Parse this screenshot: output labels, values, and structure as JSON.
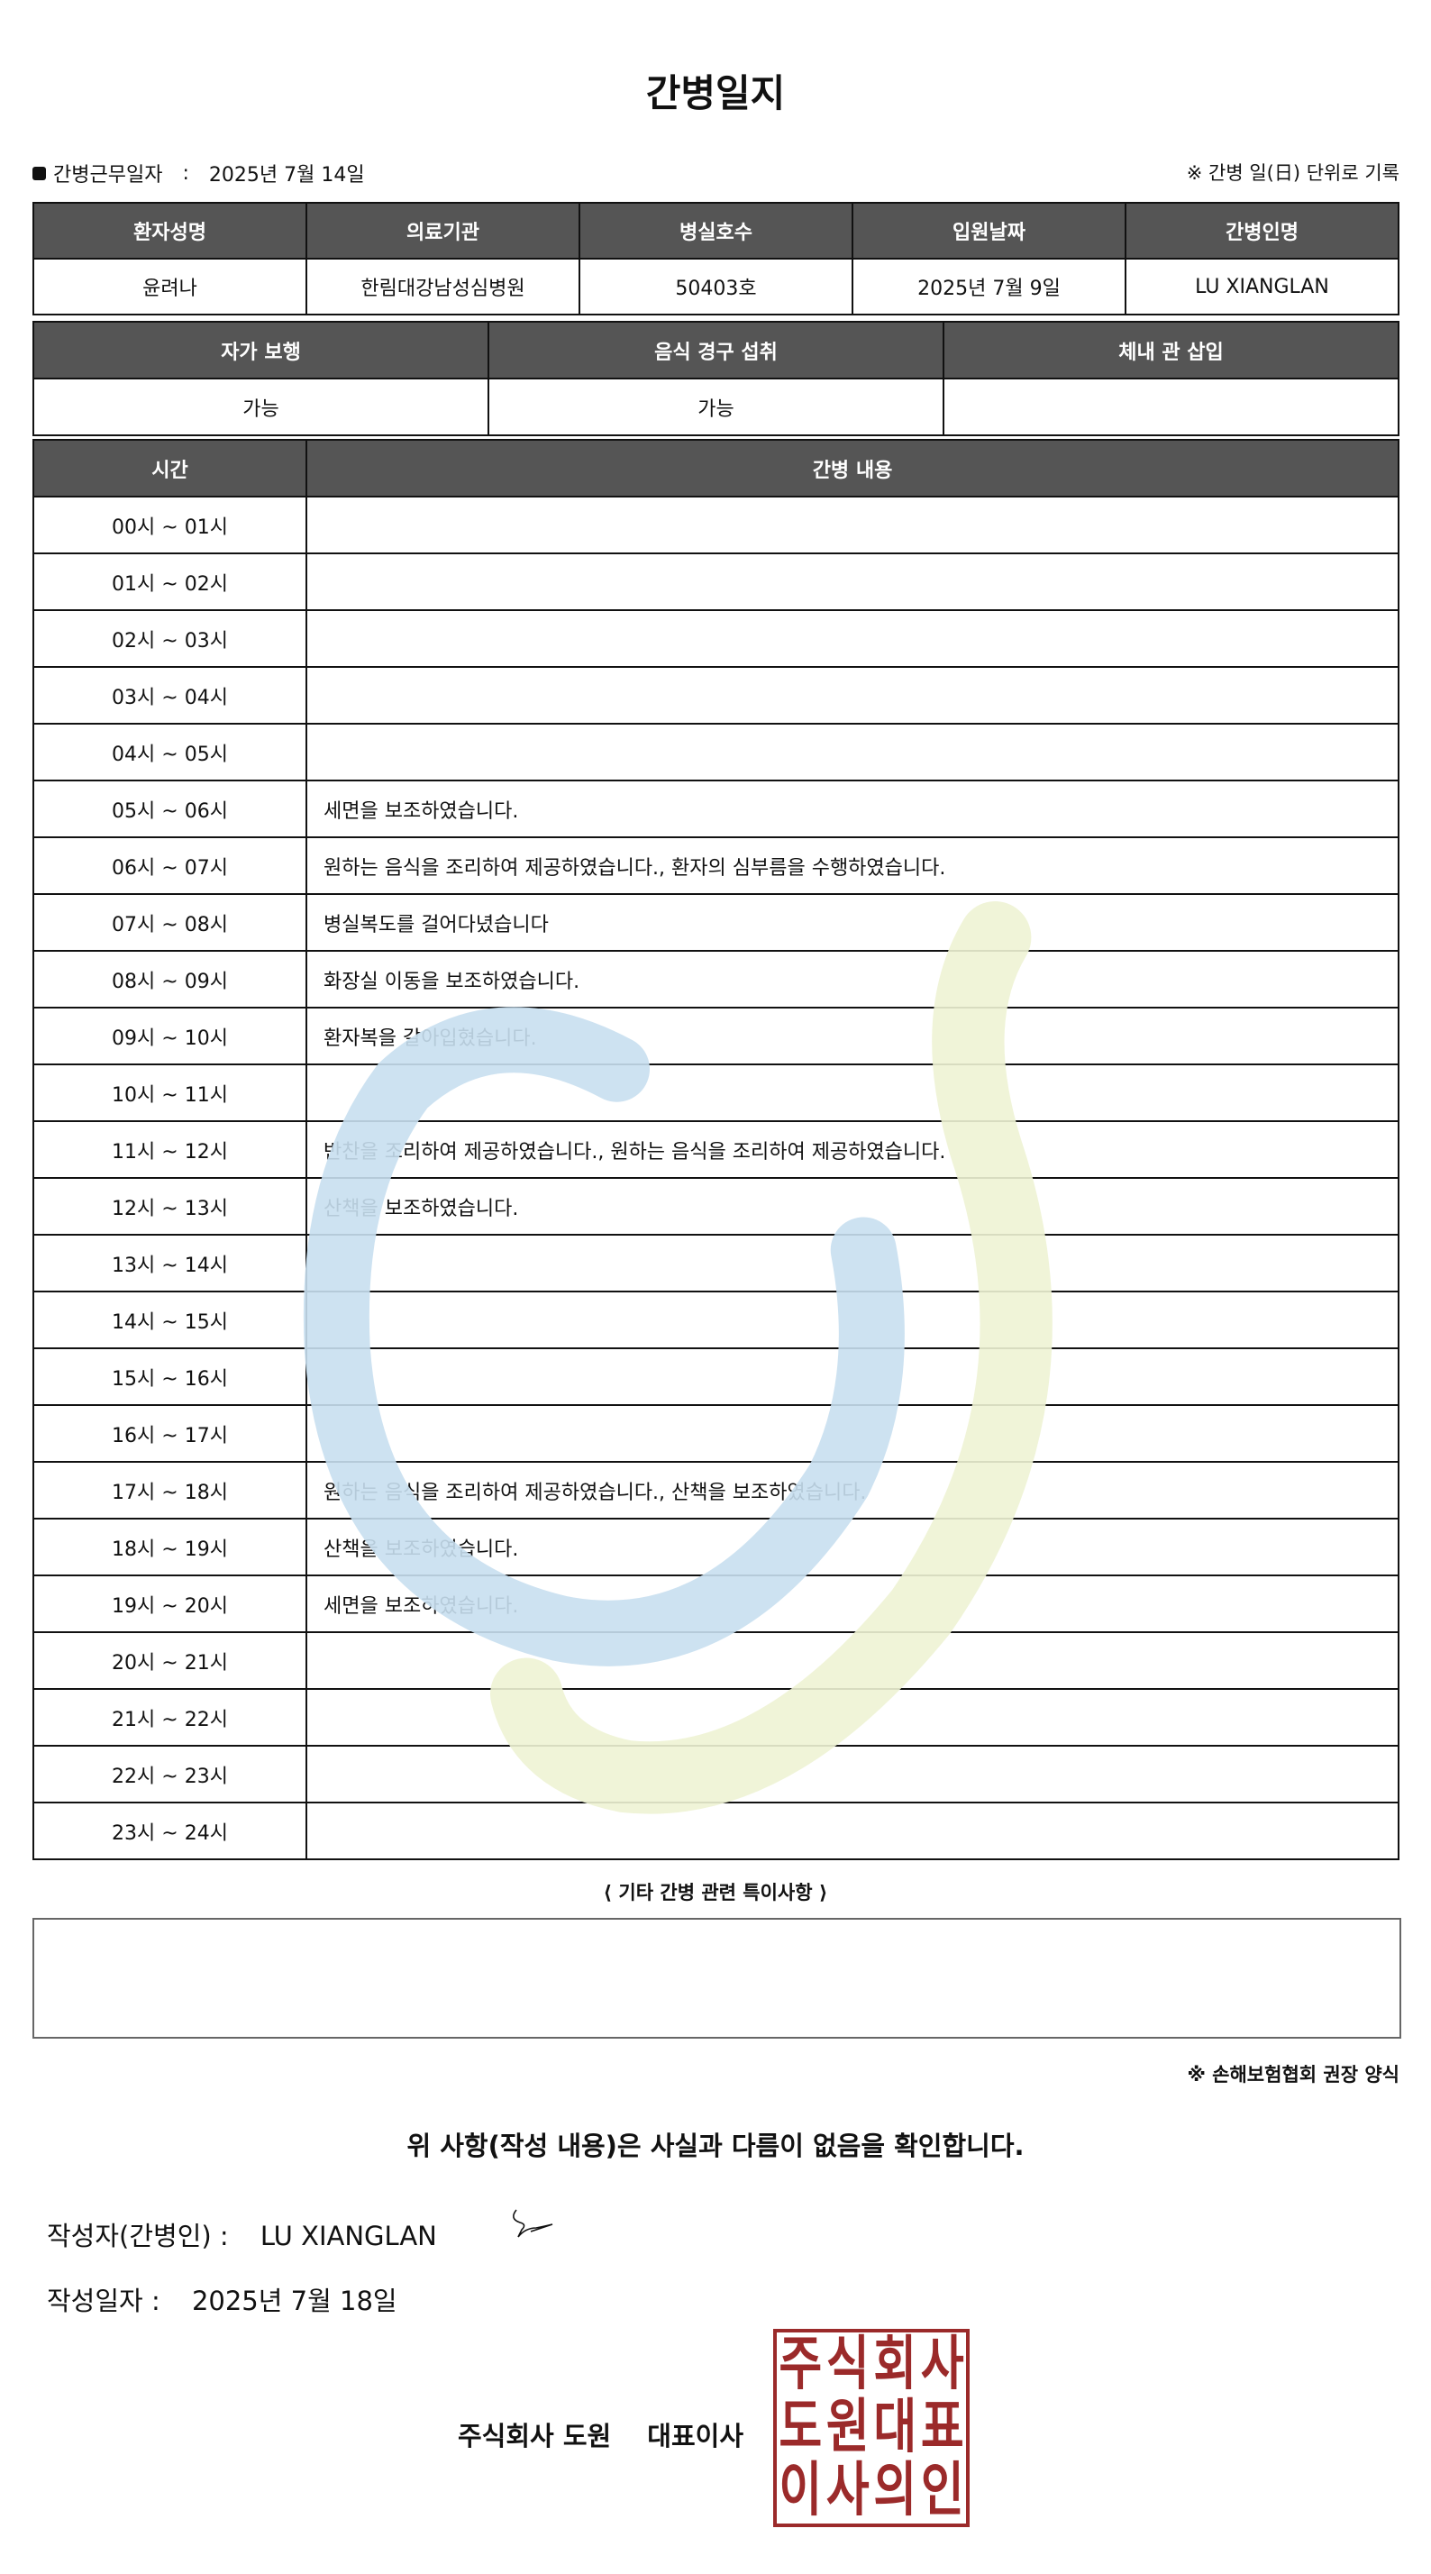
{
  "title": "간병일지",
  "work_date_label": "간병근무일자",
  "work_date_sep": ":",
  "work_date": "2025년 7월 14일",
  "unit_note": "※ 간병 일(日) 단위로 기록",
  "patient_table": {
    "headers": [
      "환자성명",
      "의료기관",
      "병실호수",
      "입원날짜",
      "간병인명"
    ],
    "values": [
      "윤려나",
      "한림대강남성심병원",
      "50403호",
      "2025년 7월 9일",
      "LU XIANGLAN"
    ]
  },
  "status_table": {
    "headers": [
      "자가 보행",
      "음식 경구 섭취",
      "체내 관 삽입"
    ],
    "values": [
      "가능",
      "가능",
      ""
    ]
  },
  "log_table": {
    "headers": [
      "시간",
      "간병 내용"
    ],
    "rows": [
      {
        "time": "00시 ~ 01시",
        "content": ""
      },
      {
        "time": "01시 ~ 02시",
        "content": ""
      },
      {
        "time": "02시 ~ 03시",
        "content": ""
      },
      {
        "time": "03시 ~ 04시",
        "content": ""
      },
      {
        "time": "04시 ~ 05시",
        "content": ""
      },
      {
        "time": "05시 ~ 06시",
        "content": "세면을 보조하였습니다."
      },
      {
        "time": "06시 ~ 07시",
        "content": "원하는 음식을 조리하여 제공하였습니다., 환자의 심부름을 수행하였습니다."
      },
      {
        "time": "07시 ~ 08시",
        "content": "병실복도를 걸어다녔습니다"
      },
      {
        "time": "08시 ~ 09시",
        "content": "화장실 이동을 보조하였습니다."
      },
      {
        "time": "09시 ~ 10시",
        "content": "환자복을 갈아입혔습니다."
      },
      {
        "time": "10시 ~ 11시",
        "content": ""
      },
      {
        "time": "11시 ~ 12시",
        "content": "반찬을 조리하여 제공하였습니다., 원하는 음식을 조리하여 제공하였습니다."
      },
      {
        "time": "12시 ~ 13시",
        "content": "산책을 보조하였습니다."
      },
      {
        "time": "13시 ~ 14시",
        "content": ""
      },
      {
        "time": "14시 ~ 15시",
        "content": ""
      },
      {
        "time": "15시 ~ 16시",
        "content": ""
      },
      {
        "time": "16시 ~ 17시",
        "content": ""
      },
      {
        "time": "17시 ~ 18시",
        "content": "원하는 음식을 조리하여 제공하였습니다., 산책을 보조하였습니다."
      },
      {
        "time": "18시 ~ 19시",
        "content": "산책을 보조하였습니다."
      },
      {
        "time": "19시 ~ 20시",
        "content": "세면을 보조하였습니다."
      },
      {
        "time": "20시 ~ 21시",
        "content": ""
      },
      {
        "time": "21시 ~ 22시",
        "content": ""
      },
      {
        "time": "22시 ~ 23시",
        "content": ""
      },
      {
        "time": "23시 ~ 24시",
        "content": ""
      }
    ]
  },
  "notes_label": "⟨ 기타 간병 관련 특이사항 ⟩",
  "notes_value": "",
  "form_note": "※ 손해보험협회 권장 양식",
  "confirm_text": "위 사항(작성 내용)은 사실과 다름이 없음을 확인합니다.",
  "writer_label": "작성자(간병인) :",
  "writer_name": "LU XIANGLAN",
  "written_date_label": "작성일자 :",
  "written_date": "2025년 7월 18일",
  "company": "주식회사 도원",
  "company_title": "대표이사",
  "seal_text": [
    "주식회사",
    "도원대표",
    "이사의인"
  ],
  "colors": {
    "header_bg": "#555555",
    "seal": "#9b2a2a",
    "watermark_blue": "#c8dff0",
    "watermark_green": "#eef3d4"
  }
}
